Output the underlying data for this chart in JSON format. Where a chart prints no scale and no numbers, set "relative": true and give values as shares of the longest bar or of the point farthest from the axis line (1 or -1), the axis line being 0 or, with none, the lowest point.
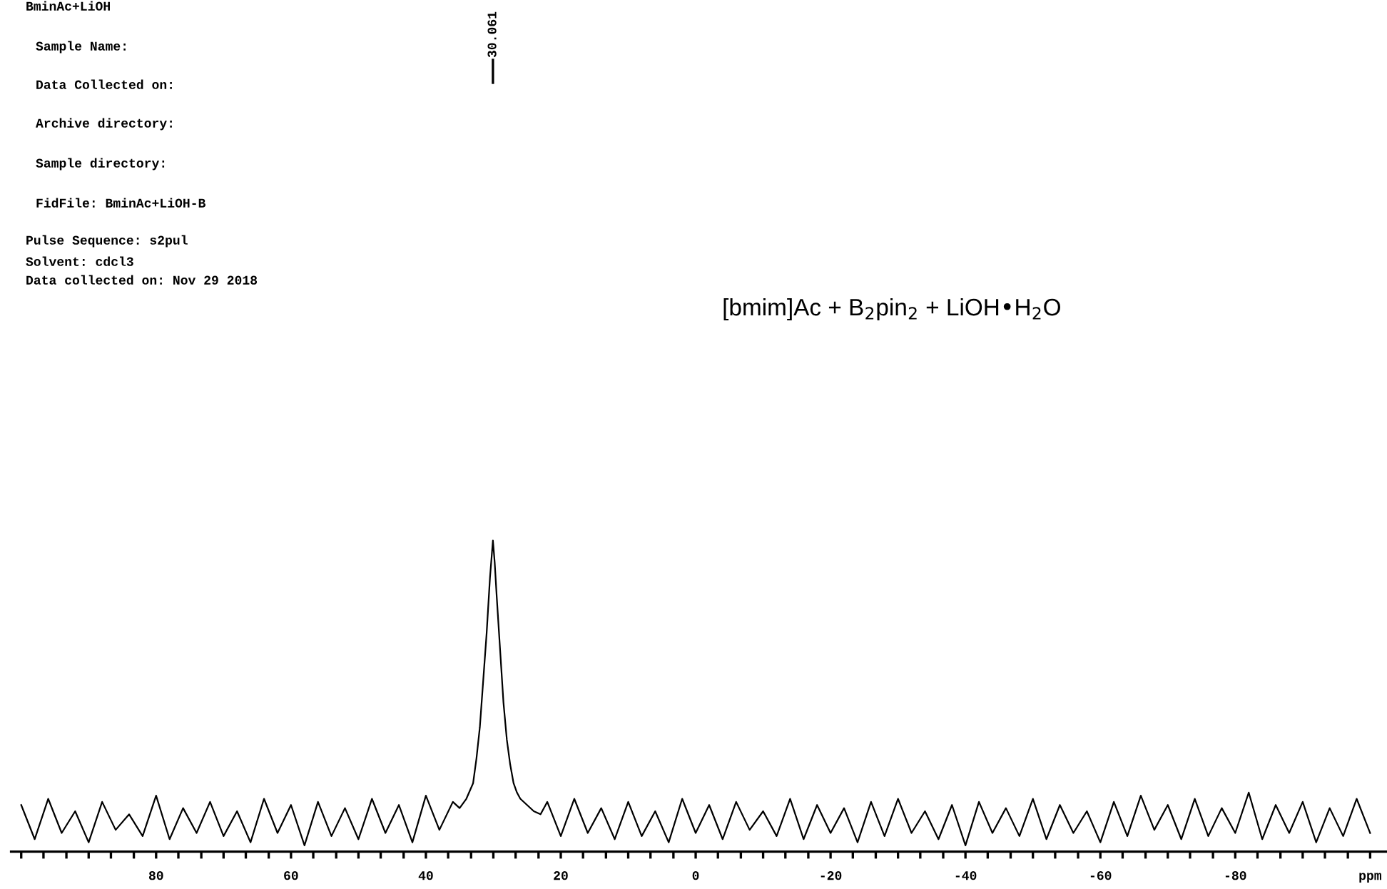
{
  "chart_data": {
    "type": "line",
    "title": "[bmim]Ac + B$_{2}$pin$_{2}$ + LiOH•H$_{2}$O",
    "relative": true,
    "annotations": [
      "BminAc+LiOH",
      "Sample Name:",
      "Data Collected on:",
      "Archive directory:",
      "Sample directory:",
      "FidFile: BminAc+LiOH-B",
      "Pulse Sequence: s2pul",
      "Solvent: cdcl3",
      "Data collected on: Nov 29 2018",
      "30.061"
    ],
    "series": [
      {
        "color": "#000000",
        "x": [
          100,
          98,
          96,
          94,
          92,
          90,
          88,
          86,
          84,
          82,
          80,
          78,
          76,
          74,
          72,
          70,
          68,
          66,
          64,
          62,
          60,
          58,
          56,
          54,
          52,
          50,
          48,
          46,
          44,
          42,
          40,
          38,
          36,
          35,
          34,
          33,
          32.5,
          32,
          31.5,
          31,
          30.5,
          30.061,
          29.8,
          29.5,
          29,
          28.5,
          28,
          27.5,
          27,
          26.5,
          26,
          25,
          24,
          23,
          22,
          20,
          18,
          16,
          14,
          12,
          10,
          8,
          6,
          4,
          2,
          0,
          -2,
          -4,
          -6,
          -8,
          -10,
          -12,
          -14,
          -16,
          -18,
          -20,
          -22,
          -24,
          -26,
          -28,
          -30,
          -32,
          -34,
          -36,
          -38,
          -40,
          -42,
          -44,
          -46,
          -48,
          -50,
          -52,
          -54,
          -56,
          -58,
          -60,
          -62,
          -64,
          -66,
          -68,
          -70,
          -72,
          -74,
          -76,
          -78,
          -80,
          -82,
          -84,
          -86,
          -88,
          -90,
          -92,
          -94,
          -96,
          -98,
          -100
        ],
        "values": [
          0.15,
          0.04,
          0.17,
          0.06,
          0.13,
          0.03,
          0.16,
          0.07,
          0.12,
          0.05,
          0.18,
          0.04,
          0.14,
          0.06,
          0.16,
          0.05,
          0.13,
          0.03,
          0.17,
          0.06,
          0.15,
          0.02,
          0.16,
          0.05,
          0.14,
          0.04,
          0.17,
          0.06,
          0.15,
          0.03,
          0.18,
          0.07,
          0.16,
          0.14,
          0.17,
          0.22,
          0.3,
          0.4,
          0.55,
          0.7,
          0.88,
          1.0,
          0.93,
          0.82,
          0.65,
          0.48,
          0.36,
          0.28,
          0.22,
          0.19,
          0.17,
          0.15,
          0.13,
          0.12,
          0.16,
          0.05,
          0.17,
          0.06,
          0.14,
          0.04,
          0.16,
          0.05,
          0.13,
          0.03,
          0.17,
          0.06,
          0.15,
          0.04,
          0.16,
          0.07,
          0.13,
          0.05,
          0.17,
          0.04,
          0.15,
          0.06,
          0.14,
          0.03,
          0.16,
          0.05,
          0.17,
          0.06,
          0.13,
          0.04,
          0.15,
          0.02,
          0.16,
          0.06,
          0.14,
          0.05,
          0.17,
          0.04,
          0.15,
          0.06,
          0.13,
          0.03,
          0.16,
          0.05,
          0.18,
          0.07,
          0.15,
          0.04,
          0.17,
          0.05,
          0.14,
          0.06,
          0.19,
          0.04,
          0.15,
          0.06,
          0.16,
          0.03,
          0.14,
          0.05,
          0.17,
          0.06
        ]
      }
    ],
    "xlim": [
      101.5,
      -102.5
    ],
    "xticks": [
      {
        "value": 100,
        "label": null
      },
      {
        "value": 96.7,
        "label": null
      },
      {
        "value": 93.3,
        "label": null
      },
      {
        "value": 90,
        "label": null
      },
      {
        "value": 86.7,
        "label": null
      },
      {
        "value": 83.3,
        "label": null
      },
      80,
      {
        "value": 76.7,
        "label": null
      },
      {
        "value": 73.3,
        "label": null
      },
      {
        "value": 70,
        "label": null
      },
      {
        "value": 66.7,
        "label": null
      },
      {
        "value": 63.3,
        "label": null
      },
      60,
      {
        "value": 56.7,
        "label": null
      },
      {
        "value": 53.3,
        "label": null
      },
      {
        "value": 50,
        "label": null
      },
      {
        "value": 46.7,
        "label": null
      },
      {
        "value": 43.3,
        "label": null
      },
      40,
      {
        "value": 36.7,
        "label": null
      },
      {
        "value": 33.3,
        "label": null
      },
      {
        "value": 30,
        "label": null
      },
      {
        "value": 26.7,
        "label": null
      },
      {
        "value": 23.3,
        "label": null
      },
      20,
      {
        "value": 16.7,
        "label": null
      },
      {
        "value": 13.3,
        "label": null
      },
      {
        "value": 10,
        "label": null
      },
      {
        "value": 6.7,
        "label": null
      },
      {
        "value": 3.3,
        "label": null
      },
      0,
      {
        "value": -3.3,
        "label": null
      },
      {
        "value": -6.7,
        "label": null
      },
      {
        "value": -10,
        "label": null
      },
      {
        "value": -13.3,
        "label": null
      },
      {
        "value": -16.7,
        "label": null
      },
      -20,
      {
        "value": -23.3,
        "label": null
      },
      {
        "value": -26.7,
        "label": null
      },
      {
        "value": -30,
        "label": null
      },
      {
        "value": -33.3,
        "label": null
      },
      {
        "value": -36.7,
        "label": null
      },
      -40,
      {
        "value": -43.3,
        "label": null
      },
      {
        "value": -46.7,
        "label": null
      },
      {
        "value": -50,
        "label": null
      },
      {
        "value": -53.3,
        "label": null
      },
      {
        "value": -56.7,
        "label": null
      },
      -60,
      {
        "value": -63.3,
        "label": null
      },
      {
        "value": -66.7,
        "label": null
      },
      {
        "value": -70,
        "label": null
      },
      {
        "value": -73.3,
        "label": null
      },
      {
        "value": -76.7,
        "label": null
      },
      -80,
      {
        "value": -83.3,
        "label": null
      },
      {
        "value": -86.7,
        "label": null
      },
      {
        "value": -90,
        "label": null
      },
      {
        "value": -93.3,
        "label": null
      },
      {
        "value": -96.7,
        "label": null
      },
      {
        "value": -100,
        "label": "ppm"
      }
    ],
    "grid": false
  }
}
